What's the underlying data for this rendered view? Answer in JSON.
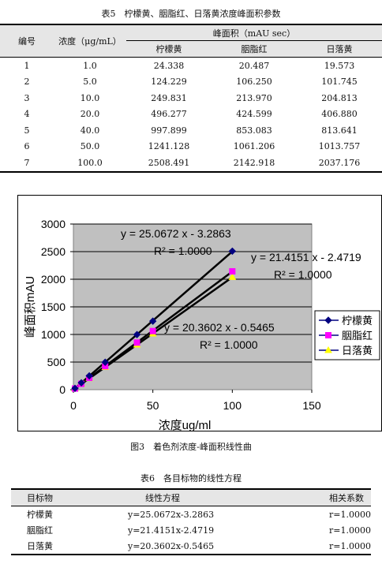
{
  "table5": {
    "caption": "表5　柠檬黄、胭脂红、日落黄浓度峰面积参数",
    "head": {
      "no": "编号",
      "conc": "浓度（μg/mL）",
      "area": "峰面积（mAU sec）",
      "sub": [
        "柠檬黄",
        "胭脂红",
        "日落黄"
      ]
    },
    "rows": [
      [
        "1",
        "1.0",
        "24.338",
        "20.487",
        "19.573"
      ],
      [
        "2",
        "5.0",
        "124.229",
        "106.250",
        "101.745"
      ],
      [
        "3",
        "10.0",
        "249.831",
        "213.970",
        "204.813"
      ],
      [
        "4",
        "20.0",
        "496.277",
        "424.599",
        "406.880"
      ],
      [
        "5",
        "40.0",
        "997.899",
        "853.083",
        "813.641"
      ],
      [
        "6",
        "50.0",
        "1241.128",
        "1061.206",
        "1013.757"
      ],
      [
        "7",
        "100.0",
        "2508.491",
        "2142.918",
        "2037.176"
      ]
    ]
  },
  "chart_data": {
    "type": "scatter",
    "xlabel": "浓度ug/ml",
    "ylabel": "峰面积mAU",
    "xlim": [
      0,
      150
    ],
    "ylim": [
      0,
      3000
    ],
    "xticks": [
      "0",
      "50",
      "100",
      "150"
    ],
    "yticks": [
      "0",
      "500",
      "1000",
      "1500",
      "2000",
      "2500",
      "3000"
    ],
    "grid": true,
    "legend": "right",
    "x": [
      1.0,
      5.0,
      10.0,
      20.0,
      40.0,
      50.0,
      100.0
    ],
    "series": [
      {
        "name": "柠檬黄",
        "color": "#000080",
        "marker": "diamond",
        "values": [
          24.338,
          124.229,
          249.831,
          496.277,
          997.899,
          1241.128,
          2508.491
        ],
        "fit": {
          "slope": 25.0672,
          "intercept": -3.2863
        },
        "eq": "y = 25.0672 x - 3.2863",
        "r2": "R² = 1.0000"
      },
      {
        "name": "胭脂红",
        "color": "#ff00ff",
        "marker": "square",
        "values": [
          20.487,
          106.25,
          213.97,
          424.599,
          853.083,
          1061.206,
          2142.918
        ],
        "fit": {
          "slope": 21.4151,
          "intercept": -2.4719
        },
        "eq": "y = 21.4151 x - 2.4719",
        "r2": "R² = 1.0000"
      },
      {
        "name": "日落黄",
        "color": "#ffff00",
        "marker": "triangle",
        "values": [
          19.573,
          101.745,
          204.813,
          406.88,
          813.641,
          1013.757,
          2037.176
        ],
        "fit": {
          "slope": 20.3602,
          "intercept": -0.5465
        },
        "eq": "y = 20.3602 x - 0.5465",
        "r2": "R² = 1.0000"
      }
    ]
  },
  "figure_caption": "图3　着色剂浓度-峰面积线性曲",
  "table6": {
    "caption": "表6　各目标物的线性方程",
    "head": [
      "目标物",
      "线性方程",
      "相关系数"
    ],
    "rows": [
      [
        "柠檬黄",
        "y=25.0672x-3.2863",
        "r=1.0000"
      ],
      [
        "胭脂红",
        "y=21.4151x-2.4719",
        "r=1.0000"
      ],
      [
        "日落黄",
        "y=20.3602x-0.5465",
        "r=1.0000"
      ]
    ]
  }
}
